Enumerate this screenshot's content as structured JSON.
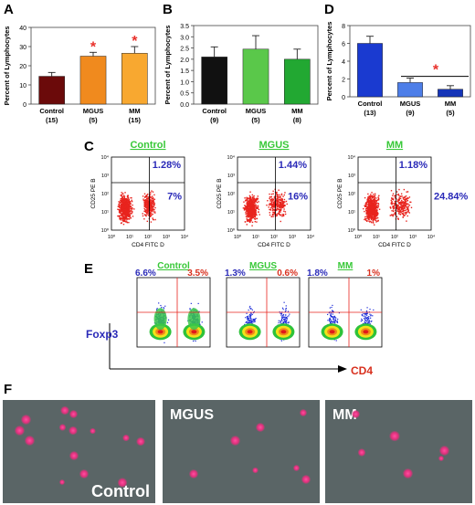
{
  "panels": {
    "A": {
      "label": "A",
      "ylabel": "Percent of Lymphocytes",
      "ylim": [
        0,
        40
      ],
      "yticks": [
        "0",
        "10",
        "20",
        "30",
        "40"
      ],
      "categories": [
        "Control",
        "MGUS",
        "MM"
      ],
      "counts": [
        "(15)",
        "(5)",
        "(15)"
      ],
      "values": [
        14.5,
        25,
        26.5
      ],
      "errors": [
        2,
        2,
        3.5
      ],
      "colors": [
        "#6b0a0a",
        "#f08a1e",
        "#f8a830"
      ],
      "star": "*",
      "stars_on": [
        1,
        2
      ]
    },
    "B": {
      "label": "B",
      "ylabel": "Percent of Lymphocytes",
      "ylim": [
        0,
        3.5
      ],
      "yticks": [
        "0.0",
        "0.5",
        "1.0",
        "1.5",
        "2.0",
        "2.5",
        "3.0",
        "3.5"
      ],
      "categories": [
        "Control",
        "MGUS",
        "MM"
      ],
      "counts": [
        "(9)",
        "(5)",
        "(8)"
      ],
      "values": [
        2.1,
        2.45,
        2.0
      ],
      "errors": [
        0.45,
        0.6,
        0.45
      ],
      "colors": [
        "#111111",
        "#5ac84a",
        "#22a832"
      ]
    },
    "D": {
      "label": "D",
      "ylabel": "Percent of Lymphocytes",
      "ylim": [
        0,
        8
      ],
      "yticks": [
        "0",
        "2",
        "4",
        "6",
        "8"
      ],
      "categories": [
        "Control",
        "MGUS",
        "MM"
      ],
      "counts": [
        "(13)",
        "(9)",
        "(5)"
      ],
      "values": [
        6.0,
        1.6,
        0.85
      ],
      "errors": [
        0.8,
        0.5,
        0.4
      ],
      "colors": [
        "#1a3ad0",
        "#4d7ee8",
        "#1535b8"
      ],
      "star": "*"
    },
    "C": {
      "label": "C",
      "plots": [
        {
          "title": "Control",
          "upper": "1.28%",
          "lower": "7%"
        },
        {
          "title": "MGUS",
          "upper": "1.44%",
          "lower": "16%"
        },
        {
          "title": "MM",
          "upper": "1.18%",
          "lower": "24.84%"
        }
      ],
      "xlabel": "CD4 FITC D",
      "ylabel": "CD25 PE B",
      "ticks": [
        "10⁰",
        "10¹",
        "10²",
        "10³",
        "10⁴"
      ]
    },
    "E": {
      "label": "E",
      "plots": [
        {
          "title": "Control",
          "left": "6.6%",
          "right": "3.5%"
        },
        {
          "title": "MGUS",
          "left": "1.3%",
          "right": "0.6%"
        },
        {
          "title": "MM",
          "left": "1.8%",
          "right": "1%"
        }
      ],
      "yaxis": "Foxp3",
      "xaxis": "CD4"
    },
    "F": {
      "label": "F",
      "captions": [
        "Control",
        "MGUS",
        "MM"
      ]
    }
  }
}
